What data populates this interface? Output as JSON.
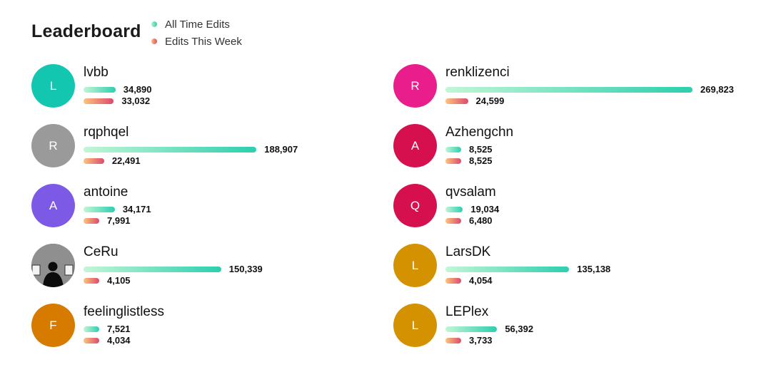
{
  "chart_data": {
    "type": "bar",
    "title": "Leaderboard",
    "legend": {
      "placement": "top-left"
    },
    "series": [
      {
        "name": "All Time Edits",
        "color": "#2ccfae"
      },
      {
        "name": "Edits This Week",
        "color": "#dc4a6c"
      }
    ],
    "entries": [
      {
        "name": "lvbb",
        "initial": "L",
        "avatar_color": "#12c6b0",
        "all_time": 34890,
        "all_time_label": "34,890",
        "this_week": 33032,
        "this_week_label": "33,032"
      },
      {
        "name": "renklizenci",
        "initial": "R",
        "avatar_color": "#e91e8c",
        "all_time": 269823,
        "all_time_label": "269,823",
        "this_week": 24599,
        "this_week_label": "24,599"
      },
      {
        "name": "rqphqel",
        "initial": "R",
        "avatar_color": "#9a9a9a",
        "all_time": 188907,
        "all_time_label": "188,907",
        "this_week": 22491,
        "this_week_label": "22,491"
      },
      {
        "name": "Azhengchn",
        "initial": "A",
        "avatar_color": "#d6104e",
        "all_time": 8525,
        "all_time_label": "8,525",
        "this_week": 8525,
        "this_week_label": "8,525"
      },
      {
        "name": "antoine",
        "initial": "A",
        "avatar_color": "#7d5ae6",
        "all_time": 34171,
        "all_time_label": "34,171",
        "this_week": 7991,
        "this_week_label": "7,991"
      },
      {
        "name": "qvsalam",
        "initial": "Q",
        "avatar_color": "#d6104e",
        "all_time": 19034,
        "all_time_label": "19,034",
        "this_week": 6480,
        "this_week_label": "6,480"
      },
      {
        "name": "CeRu",
        "initial": "",
        "avatar_color": "#8e8e8e",
        "avatar_photo": true,
        "all_time": 150339,
        "all_time_label": "150,339",
        "this_week": 4105,
        "this_week_label": "4,105"
      },
      {
        "name": "LarsDK",
        "initial": "L",
        "avatar_color": "#d49100",
        "all_time": 135138,
        "all_time_label": "135,138",
        "this_week": 4054,
        "this_week_label": "4,054"
      },
      {
        "name": "feelinglistless",
        "initial": "F",
        "avatar_color": "#d67a00",
        "all_time": 7521,
        "all_time_label": "7,521",
        "this_week": 4034,
        "this_week_label": "4,034"
      },
      {
        "name": "LEPlex",
        "initial": "L",
        "avatar_color": "#d49100",
        "all_time": 56392,
        "all_time_label": "56,392",
        "this_week": 3733,
        "this_week_label": "3,733"
      }
    ]
  }
}
